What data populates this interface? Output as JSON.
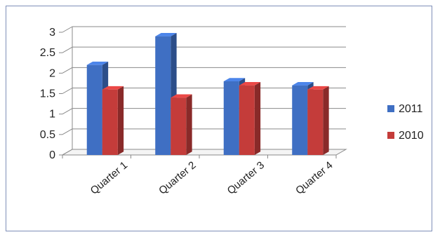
{
  "chart_data": {
    "type": "bar",
    "style": "3d-clustered-column",
    "categories": [
      "Quarter 1",
      "Quarter 2",
      "Quarter 3",
      "Quarter 4"
    ],
    "series": [
      {
        "name": "2011",
        "values": [
          2.2,
          2.9,
          1.8,
          1.7
        ],
        "color": "#3f6fc3"
      },
      {
        "name": "2010",
        "values": [
          1.6,
          1.4,
          1.7,
          1.6
        ],
        "color": "#c43c3a"
      }
    ],
    "ylim": [
      0,
      3
    ],
    "yticks": [
      "0",
      "0.5",
      "1",
      "1.5",
      "2",
      "2.5",
      "3"
    ],
    "grid": true,
    "legend": "right"
  }
}
